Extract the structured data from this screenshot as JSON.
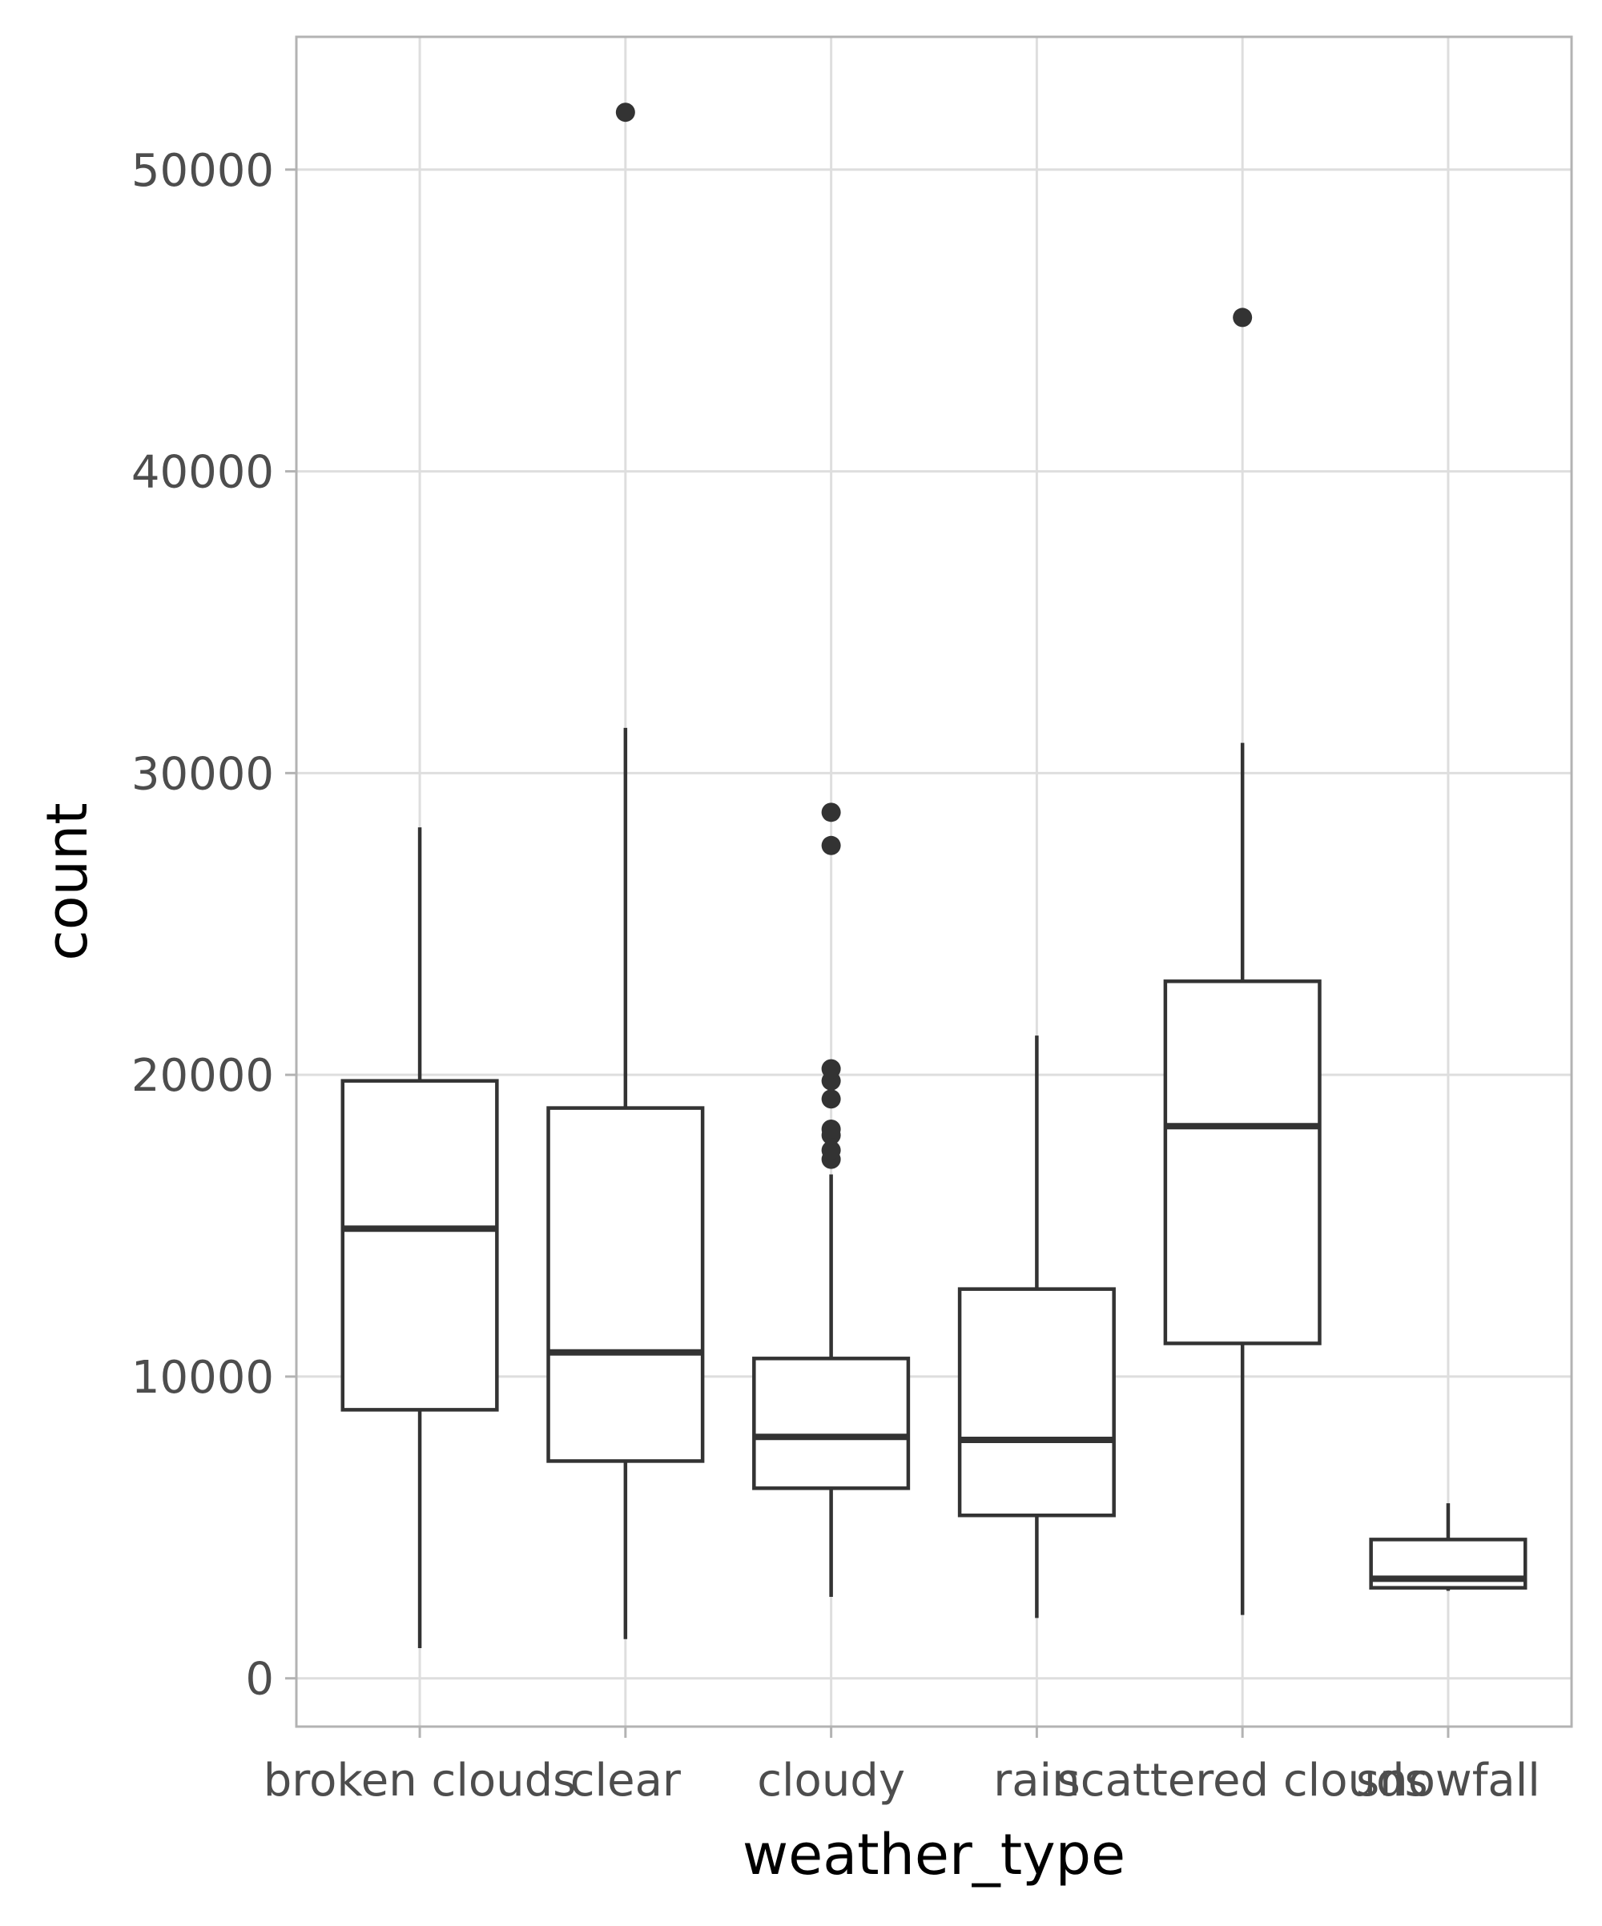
{
  "chart_data": {
    "type": "box",
    "title": "",
    "xlabel": "weather_type",
    "ylabel": "count",
    "ylim": [
      -1600,
      54400
    ],
    "yticks": [
      0,
      10000,
      20000,
      30000,
      40000,
      50000
    ],
    "ytick_labels": [
      "0",
      "10000",
      "20000",
      "30000",
      "40000",
      "50000"
    ],
    "grid": true,
    "colors": {
      "box_stroke": "#333333",
      "box_fill": "#ffffff",
      "grid": "#dedede",
      "panel_border": "#b3b3b3"
    },
    "categories": [
      "broken clouds",
      "clear",
      "cloudy",
      "rain",
      "scattered clouds",
      "snowfall"
    ],
    "boxes": [
      {
        "category": "broken clouds",
        "whisker_low": 1000,
        "q1": 8900,
        "median": 14900,
        "q3": 19800,
        "whisker_high": 28200,
        "outliers": []
      },
      {
        "category": "clear",
        "whisker_low": 1300,
        "q1": 7200,
        "median": 10800,
        "q3": 18900,
        "whisker_high": 31500,
        "outliers": [
          51900
        ]
      },
      {
        "category": "cloudy",
        "whisker_low": 2700,
        "q1": 6300,
        "median": 8000,
        "q3": 10600,
        "whisker_high": 16700,
        "outliers": [
          17200,
          17500,
          18000,
          18200,
          19200,
          19800,
          20200,
          27600,
          28700
        ]
      },
      {
        "category": "rain",
        "whisker_low": 2000,
        "q1": 5400,
        "median": 7900,
        "q3": 12900,
        "whisker_high": 21300,
        "outliers": []
      },
      {
        "category": "scattered clouds",
        "whisker_low": 2100,
        "q1": 11100,
        "median": 18300,
        "q3": 23100,
        "whisker_high": 31000,
        "outliers": [
          45100
        ]
      },
      {
        "category": "snowfall",
        "whisker_low": 2900,
        "q1": 3000,
        "median": 3300,
        "q3": 4600,
        "whisker_high": 5800,
        "outliers": []
      }
    ]
  }
}
